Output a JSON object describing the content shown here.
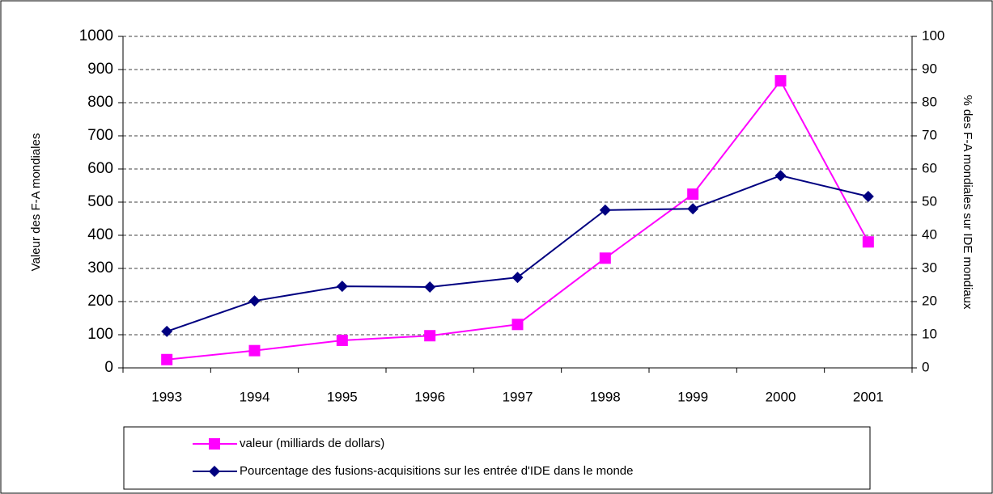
{
  "chart_data": {
    "type": "line",
    "categories": [
      "1993",
      "1994",
      "1995",
      "1996",
      "1997",
      "1998",
      "1999",
      "2000",
      "2001"
    ],
    "ylabel": "Valeur des F-A mondiales",
    "y2label": "% des F-A mondiales sur IDE mondiaux",
    "ylim": [
      0,
      1000
    ],
    "yticks": [
      0,
      100,
      200,
      300,
      400,
      500,
      600,
      700,
      800,
      900,
      1000
    ],
    "y2lim": [
      0,
      100
    ],
    "y2ticks": [
      0,
      10,
      20,
      30,
      40,
      50,
      60,
      70,
      80,
      90,
      100
    ],
    "grid": true,
    "legend": "bottom",
    "series": [
      {
        "name": "valeur (milliards de dollars)",
        "color": "#ff00ff",
        "marker": "square",
        "values": [
          25,
          52,
          83,
          97,
          131,
          331,
          524,
          866,
          380
        ]
      },
      {
        "name": "Pourcentage des fusions-acquisitions sur les entrée d'IDE dans le monde",
        "color": "#000080",
        "marker": "diamond",
        "axis": "y2",
        "values": [
          11,
          20.2,
          24.6,
          24.4,
          27.3,
          47.6,
          48,
          58,
          51.7
        ]
      }
    ]
  }
}
